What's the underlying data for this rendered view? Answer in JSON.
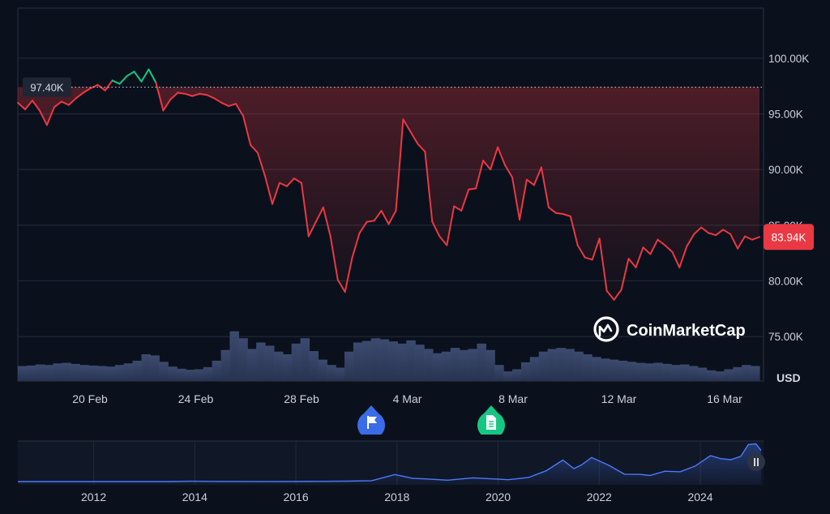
{
  "chart_data": [
    {
      "type": "line",
      "currency_label": "USD",
      "y_ticks": [
        75000,
        80000,
        85000,
        90000,
        95000,
        100000
      ],
      "y_tick_labels": [
        "75.00K",
        "80.00K",
        "85.00K",
        "90.00K",
        "95.00K",
        "100.00K"
      ],
      "ylim": [
        71000,
        104500
      ],
      "x_ticks": [
        "20 Feb",
        "24 Feb",
        "28 Feb",
        "4 Mar",
        "8 Mar",
        "12 Mar",
        "16 Mar"
      ],
      "reference_price": 97400,
      "reference_label": "97.40K",
      "current_price": 83940,
      "current_label": "83.94K",
      "colors": {
        "up": "#16c784",
        "down": "#ea3943",
        "volume": "#3c4a6e"
      },
      "markers": [
        "flag-icon",
        "document-icon"
      ],
      "series": [
        {
          "values": [
            96000,
            95400,
            96200,
            95300,
            94000,
            95600,
            96100,
            95800,
            96400,
            96900,
            97300,
            97600,
            97100,
            98000,
            97700,
            98400,
            98800,
            97900,
            99000,
            97800,
            95300,
            96300,
            96900,
            96800,
            96600,
            96800,
            96700,
            96400,
            96000,
            95700,
            95900,
            94800,
            92200,
            91500,
            89400,
            86900,
            88800,
            88500,
            89200,
            88800,
            84000,
            85300,
            86600,
            84000,
            80100,
            79000,
            82100,
            84300,
            85300,
            85400,
            86300,
            85100,
            86300,
            94500,
            93400,
            92300,
            91600,
            85300,
            84000,
            83200,
            86700,
            86300,
            88200,
            88300,
            90800,
            90000,
            92000,
            90400,
            89300,
            85500,
            89100,
            88600,
            90200,
            86600,
            86100,
            86000,
            85800,
            83200,
            82100,
            81900,
            83800,
            79100,
            78300,
            79200,
            82000,
            81200,
            83000,
            82400,
            83700,
            83200,
            82600,
            81200,
            83100,
            84200,
            84800,
            84300,
            84100,
            84600,
            84200,
            82900,
            84000,
            83700,
            83940
          ]
        }
      ],
      "volume": [
        0.28,
        0.29,
        0.31,
        0.3,
        0.33,
        0.34,
        0.32,
        0.3,
        0.29,
        0.28,
        0.27,
        0.3,
        0.33,
        0.38,
        0.5,
        0.48,
        0.36,
        0.27,
        0.23,
        0.21,
        0.22,
        0.26,
        0.38,
        0.58,
        0.93,
        0.8,
        0.6,
        0.72,
        0.66,
        0.55,
        0.5,
        0.7,
        0.8,
        0.56,
        0.4,
        0.3,
        0.25,
        0.55,
        0.72,
        0.75,
        0.8,
        0.78,
        0.74,
        0.7,
        0.76,
        0.68,
        0.6,
        0.52,
        0.55,
        0.62,
        0.58,
        0.6,
        0.7,
        0.58,
        0.3,
        0.18,
        0.22,
        0.35,
        0.45,
        0.55,
        0.6,
        0.62,
        0.6,
        0.55,
        0.5,
        0.45,
        0.42,
        0.4,
        0.38,
        0.36,
        0.34,
        0.33,
        0.34,
        0.32,
        0.3,
        0.31,
        0.28,
        0.25,
        0.2,
        0.18,
        0.22,
        0.26,
        0.3,
        0.28
      ]
    },
    {
      "type": "area",
      "x_ticks": [
        "2012",
        "2014",
        "2016",
        "2018",
        "2020",
        "2022",
        "2024"
      ],
      "x": [
        2010.5,
        2011.5,
        2012.5,
        2013.5,
        2013.9,
        2014.5,
        2015.5,
        2016.5,
        2017.0,
        2017.5,
        2017.96,
        2018.3,
        2018.6,
        2019.0,
        2019.5,
        2019.9,
        2020.2,
        2020.6,
        2020.95,
        2021.28,
        2021.5,
        2021.65,
        2021.85,
        2022.2,
        2022.5,
        2022.8,
        2023.0,
        2023.3,
        2023.6,
        2023.9,
        2024.2,
        2024.4,
        2024.6,
        2024.8,
        2024.95,
        2025.1,
        2025.2
      ],
      "values": [
        0,
        0,
        0,
        50,
        800,
        500,
        300,
        650,
        1000,
        2500,
        19000,
        9000,
        7000,
        3700,
        10000,
        7200,
        5000,
        11000,
        29000,
        58000,
        35000,
        45000,
        65000,
        43000,
        20000,
        19500,
        16500,
        28000,
        26500,
        42000,
        70000,
        62000,
        59000,
        68000,
        100000,
        102000,
        83940
      ]
    }
  ],
  "watermark": {
    "brand": "CoinMarketCap"
  },
  "navigator": {
    "handle_icon": "pause-icon"
  }
}
